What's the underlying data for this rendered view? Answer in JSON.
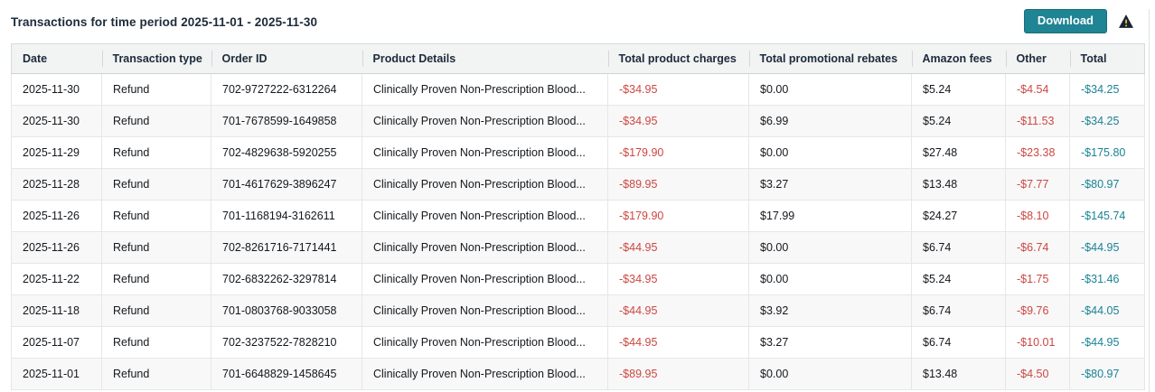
{
  "header": {
    "title": "Transactions for time period 2025-11-01 - 2025-11-30",
    "download_label": "Download",
    "warning_icon": "warning-triangle"
  },
  "colors": {
    "button_teal": "#1f8493",
    "link_teal": "#1a8296",
    "negative_red": "#cc4742",
    "header_bg": "#f2f3f3",
    "stripe_bg": "#f8f8f8"
  },
  "table": {
    "columns": [
      "Date",
      "Transaction type",
      "Order ID",
      "Product Details",
      "Total product charges",
      "Total promotional rebates",
      "Amazon fees",
      "Other",
      "Total"
    ],
    "fields": [
      "date",
      "type",
      "order_id",
      "product",
      "charges",
      "rebates",
      "fees",
      "other",
      "total"
    ],
    "rows": [
      {
        "date": "2025-11-30",
        "type": "Refund",
        "order_id": "702-9727222-6312264",
        "product": "Clinically Proven Non-Prescription Blood...",
        "charges": "-$34.95",
        "rebates": "$0.00",
        "fees": "$5.24",
        "other": "-$4.54",
        "total": "-$34.25"
      },
      {
        "date": "2025-11-30",
        "type": "Refund",
        "order_id": "701-7678599-1649858",
        "product": "Clinically Proven Non-Prescription Blood...",
        "charges": "-$34.95",
        "rebates": "$6.99",
        "fees": "$5.24",
        "other": "-$11.53",
        "total": "-$34.25"
      },
      {
        "date": "2025-11-29",
        "type": "Refund",
        "order_id": "702-4829638-5920255",
        "product": "Clinically Proven Non-Prescription Blood...",
        "charges": "-$179.90",
        "rebates": "$0.00",
        "fees": "$27.48",
        "other": "-$23.38",
        "total": "-$175.80"
      },
      {
        "date": "2025-11-28",
        "type": "Refund",
        "order_id": "701-4617629-3896247",
        "product": "Clinically Proven Non-Prescription Blood...",
        "charges": "-$89.95",
        "rebates": "$3.27",
        "fees": "$13.48",
        "other": "-$7.77",
        "total": "-$80.97"
      },
      {
        "date": "2025-11-26",
        "type": "Refund",
        "order_id": "701-1168194-3162611",
        "product": "Clinically Proven Non-Prescription Blood...",
        "charges": "-$179.90",
        "rebates": "$17.99",
        "fees": "$24.27",
        "other": "-$8.10",
        "total": "-$145.74"
      },
      {
        "date": "2025-11-26",
        "type": "Refund",
        "order_id": "702-8261716-7171441",
        "product": "Clinically Proven Non-Prescription Blood...",
        "charges": "-$44.95",
        "rebates": "$0.00",
        "fees": "$6.74",
        "other": "-$6.74",
        "total": "-$44.95"
      },
      {
        "date": "2025-11-22",
        "type": "Refund",
        "order_id": "702-6832262-3297814",
        "product": "Clinically Proven Non-Prescription Blood...",
        "charges": "-$34.95",
        "rebates": "$0.00",
        "fees": "$5.24",
        "other": "-$1.75",
        "total": "-$31.46"
      },
      {
        "date": "2025-11-18",
        "type": "Refund",
        "order_id": "701-0803768-9033058",
        "product": "Clinically Proven Non-Prescription Blood...",
        "charges": "-$44.95",
        "rebates": "$3.92",
        "fees": "$6.74",
        "other": "-$9.76",
        "total": "-$44.05"
      },
      {
        "date": "2025-11-07",
        "type": "Refund",
        "order_id": "702-3237522-7828210",
        "product": "Clinically Proven Non-Prescription Blood...",
        "charges": "-$44.95",
        "rebates": "$3.27",
        "fees": "$6.74",
        "other": "-$10.01",
        "total": "-$44.95"
      },
      {
        "date": "2025-11-01",
        "type": "Refund",
        "order_id": "701-6648829-1458645",
        "product": "Clinically Proven Non-Prescription Blood...",
        "charges": "-$89.95",
        "rebates": "$0.00",
        "fees": "$13.48",
        "other": "-$4.50",
        "total": "-$80.97"
      }
    ]
  }
}
